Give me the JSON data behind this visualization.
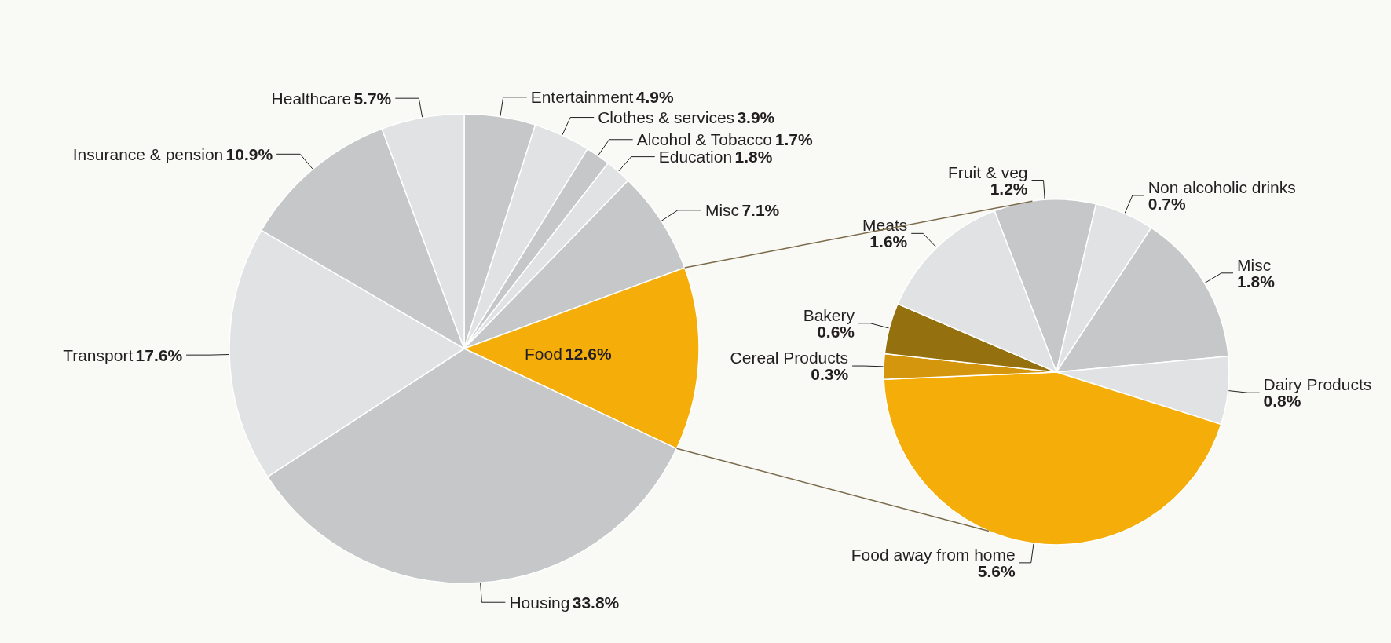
{
  "chart_data": [
    {
      "type": "pie",
      "categories": [
        "Entertainment",
        "Clothes & services",
        "Alcohol & Tobacco",
        "Education",
        "Misc",
        "Food",
        "Housing",
        "Transport",
        "Insurance & pension",
        "Healthcare"
      ],
      "values": [
        4.9,
        3.9,
        1.7,
        1.8,
        7.1,
        12.6,
        33.8,
        17.6,
        10.9,
        5.7
      ],
      "colors": [
        "#c6c7c9",
        "#e1e2e4",
        "#c6c7c9",
        "#e1e2e4",
        "#c6c7c9",
        "#f5ad0a",
        "#c6c7c9",
        "#e1e2e4",
        "#c6c7c9",
        "#e1e2e4"
      ],
      "value_labels": [
        "4.9%",
        "3.9%",
        "1.7%",
        "1.8%",
        "7.1%",
        "12.6%",
        "33.8%",
        "17.6%",
        "10.9%",
        "5.7%"
      ]
    },
    {
      "type": "pie",
      "categories": [
        "Fruit & veg",
        "Non alcoholic drinks",
        "Misc",
        "Dairy Products",
        "Food away from home",
        "Cereal Products",
        "Bakery",
        "Meats"
      ],
      "values": [
        1.2,
        0.7,
        1.8,
        0.8,
        5.6,
        0.3,
        0.6,
        1.6
      ],
      "colors": [
        "#c6c7c9",
        "#e1e2e4",
        "#c6c7c9",
        "#e1e2e4",
        "#f5ad0a",
        "#d4960c",
        "#94700f",
        "#e1e2e4"
      ],
      "value_labels": [
        "1.2%",
        "0.7%",
        "1.8%",
        "0.8%",
        "5.6%",
        "0.3%",
        "0.6%",
        "1.6%"
      ]
    }
  ]
}
